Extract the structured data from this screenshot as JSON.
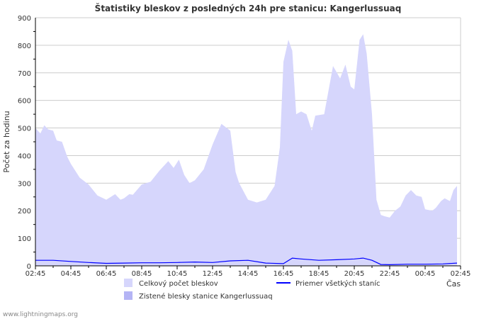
{
  "chart_data": {
    "type": "area",
    "title": "Štatistiky bleskov z posledných 24h pre stanicu: Kangerlussuaq",
    "xlabel": "Čas",
    "ylabel": "Počet za hodinu",
    "ylim": [
      0,
      900
    ],
    "yticks": [
      0,
      100,
      200,
      300,
      400,
      500,
      600,
      700,
      800,
      900
    ],
    "xlim_hours": [
      0,
      24
    ],
    "xtick_labels": [
      "02:45",
      "04:45",
      "06:45",
      "08:45",
      "10:45",
      "12:45",
      "14:45",
      "16:45",
      "18:45",
      "20:45",
      "22:45",
      "00:45",
      "02:45"
    ],
    "grid": true,
    "legend_position": "bottom",
    "series": [
      {
        "name": "Celkový počet bleskov",
        "color": "#d6d6fc",
        "kind": "area",
        "x": [
          0,
          0.28,
          0.5,
          0.72,
          1,
          1.2,
          1.5,
          1.8,
          2,
          2.5,
          3,
          3.5,
          4,
          4.5,
          4.8,
          5,
          5.3,
          5.5,
          6,
          6.5,
          7,
          7.5,
          7.8,
          8.1,
          8.4,
          8.7,
          9,
          9.5,
          10,
          10.5,
          11,
          11.3,
          11.5,
          12,
          12.5,
          13,
          13.5,
          13.8,
          14,
          14.28,
          14.5,
          14.72,
          15,
          15.3,
          15.6,
          15.8,
          16.3,
          16.5,
          16.8,
          17.2,
          17.5,
          17.8,
          18,
          18.3,
          18.5,
          18.7,
          19,
          19.25,
          19.5,
          19.7,
          20,
          20.3,
          20.6,
          20.9,
          21.2,
          21.5,
          21.8,
          22,
          22.4,
          22.6,
          22.9,
          23.1,
          23.4,
          23.6,
          23.8
        ],
        "y": [
          500,
          480,
          510,
          495,
          490,
          455,
          450,
          395,
          370,
          320,
          295,
          255,
          240,
          260,
          240,
          245,
          260,
          258,
          295,
          305,
          345,
          380,
          355,
          385,
          330,
          300,
          310,
          350,
          440,
          515,
          490,
          340,
          300,
          240,
          230,
          240,
          290,
          430,
          740,
          820,
          780,
          550,
          560,
          550,
          490,
          545,
          550,
          620,
          725,
          680,
          730,
          650,
          640,
          820,
          840,
          770,
          550,
          240,
          185,
          180,
          175,
          200,
          215,
          255,
          275,
          255,
          250,
          205,
          200,
          210,
          235,
          245,
          235,
          275,
          290
        ]
      },
      {
        "name": "Zistené blesky stanice Kangerlussuaq",
        "color": "#b4b4f5",
        "kind": "area",
        "x": [],
        "y": []
      },
      {
        "name": "Priemer všetkých staníc",
        "color": "#0000ff",
        "kind": "line",
        "x": [
          0,
          1,
          2,
          3,
          4,
          5,
          6,
          7,
          8,
          9,
          10,
          11,
          12,
          13,
          14,
          14.5,
          15,
          16,
          17,
          18,
          18.5,
          19,
          19.5,
          20,
          21,
          22,
          23,
          23.8
        ],
        "y": [
          20,
          20,
          16,
          12,
          9,
          10,
          11,
          11,
          12,
          14,
          12,
          18,
          20,
          10,
          8,
          28,
          25,
          20,
          22,
          25,
          28,
          20,
          5,
          4,
          6,
          6,
          7,
          10
        ]
      }
    ]
  },
  "footer": "www.lightningmaps.org"
}
